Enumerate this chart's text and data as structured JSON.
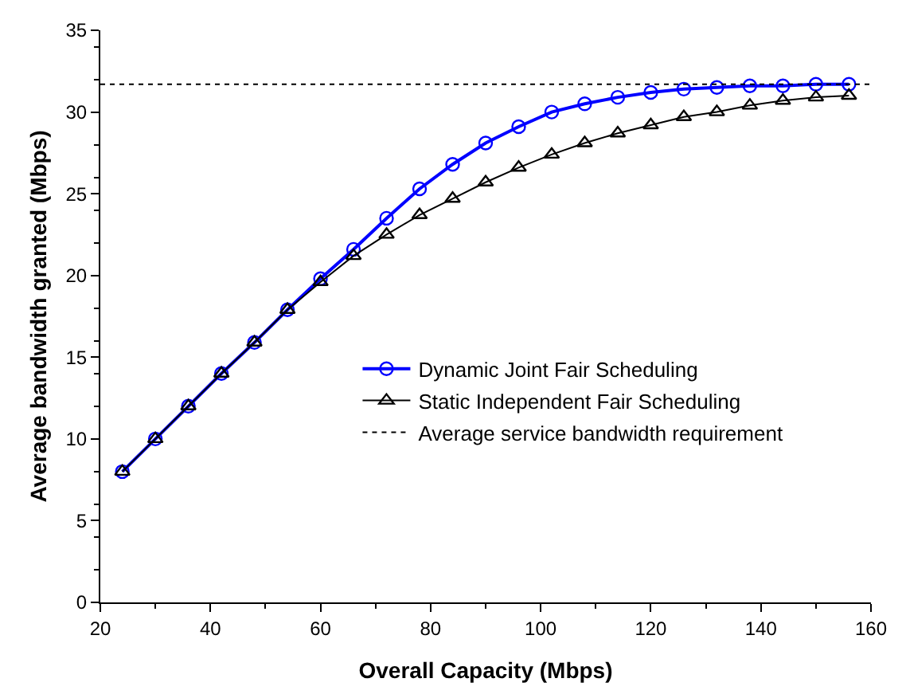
{
  "chart_data": {
    "type": "line",
    "xlabel": "Overall Capacity (Mbps)",
    "ylabel": "Average bandwidth granted (Mbps)",
    "x": [
      24,
      30,
      36,
      42,
      48,
      54,
      60,
      66,
      72,
      78,
      84,
      90,
      96,
      102,
      108,
      114,
      120,
      126,
      132,
      138,
      144,
      150,
      156
    ],
    "series": [
      {
        "name": "Dynamic Joint Fair Scheduling",
        "color": "#0000ff",
        "marker": "circle",
        "line_style": "solid",
        "values": [
          8.0,
          10.0,
          12.0,
          14.0,
          15.9,
          17.9,
          19.8,
          21.6,
          23.5,
          25.3,
          26.8,
          28.1,
          29.1,
          30.0,
          30.5,
          30.9,
          31.2,
          31.4,
          31.5,
          31.6,
          31.6,
          31.7,
          31.7
        ]
      },
      {
        "name": "Static Independent Fair Scheduling",
        "color": "#000000",
        "marker": "triangle",
        "line_style": "solid",
        "values": [
          8.0,
          10.0,
          12.0,
          14.0,
          15.9,
          17.9,
          19.6,
          21.2,
          22.5,
          23.7,
          24.7,
          25.7,
          26.6,
          27.4,
          28.1,
          28.7,
          29.2,
          29.7,
          30.0,
          30.4,
          30.7,
          30.9,
          31.0
        ]
      },
      {
        "name": "Average service bandwidth requirement",
        "color": "#000000",
        "marker": "none",
        "line_style": "dotted",
        "x": [
          20,
          160
        ],
        "values": [
          31.7,
          31.7
        ]
      }
    ],
    "xlim": [
      20,
      160
    ],
    "xticks": [
      20,
      40,
      60,
      80,
      100,
      120,
      140,
      160
    ],
    "ylim": [
      0,
      35
    ],
    "yticks": [
      0,
      5,
      10,
      15,
      20,
      25,
      30,
      35
    ],
    "legend": "right"
  }
}
